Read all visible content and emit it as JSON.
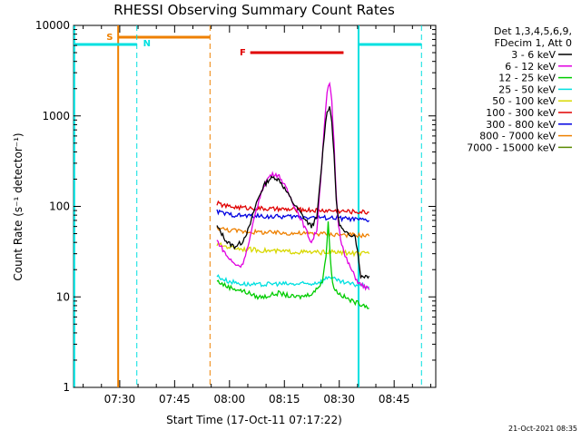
{
  "chart_data": {
    "type": "line",
    "title": "RHESSI Observing Summary Count Rates",
    "xlabel": "Start Time (17-Oct-11 07:17:22)",
    "ylabel": "Count Rate (s⁻¹ detector⁻¹)",
    "xlim_minutes_after_start": [
      0,
      99
    ],
    "ylim": [
      1,
      10000
    ],
    "y_scale": "log",
    "x_ticks": [
      "07:30",
      "07:45",
      "08:00",
      "08:15",
      "08:30",
      "08:45"
    ],
    "x_tick_minutes": [
      12.63,
      27.63,
      42.63,
      57.63,
      72.63,
      87.63
    ],
    "y_ticks": [
      "1",
      "10",
      "100",
      "1000",
      "10000"
    ],
    "y_tick_values": [
      1,
      10,
      100,
      1000,
      10000
    ],
    "legend_header": [
      "Det 1,3,4,5,6,9,",
      "FDecim 1, Att 0"
    ],
    "legend_position": "right",
    "series": [
      {
        "name": "3 - 6 keV",
        "color": "#000000",
        "t": [
          39.2,
          40.5,
          42,
          44,
          46,
          48,
          50,
          52,
          53.5,
          55,
          56.5,
          58,
          60,
          62,
          63.5,
          65,
          66.5,
          67.5,
          68.5,
          69.3,
          70,
          70.6,
          71.2,
          71.8,
          72.4,
          73,
          73.6,
          74.2,
          75,
          77,
          78.5,
          79.5,
          80.8
        ],
        "v": [
          60,
          50,
          40,
          36,
          40,
          58,
          110,
          170,
          200,
          210,
          190,
          150,
          110,
          85,
          70,
          60,
          75,
          200,
          600,
          1150,
          1250,
          900,
          350,
          120,
          70,
          60,
          55,
          50,
          50,
          48,
          17,
          17,
          17
        ]
      },
      {
        "name": "6 - 12 keV",
        "color": "#e000e0",
        "t": [
          39.2,
          40.5,
          42,
          44,
          46,
          48,
          50,
          52,
          53.5,
          55,
          56.5,
          58,
          60,
          62,
          63.5,
          65,
          66.5,
          67.5,
          68.5,
          69.3,
          70,
          70.6,
          71.2,
          71.8,
          72.4,
          73,
          73.6,
          74.2,
          75,
          76.5,
          78,
          79.5,
          80.8
        ],
        "v": [
          42,
          35,
          28,
          23,
          22,
          40,
          95,
          170,
          215,
          230,
          210,
          160,
          110,
          75,
          55,
          40,
          55,
          190,
          700,
          1800,
          2300,
          1400,
          500,
          130,
          65,
          45,
          35,
          28,
          24,
          18,
          14,
          13,
          12
        ]
      },
      {
        "name": "12 - 25 keV",
        "color": "#00cc00",
        "t": [
          39.2,
          42,
          45,
          48,
          50,
          52,
          54,
          56,
          58,
          60,
          62,
          64,
          66,
          68,
          69,
          69.6,
          70.2,
          70.8,
          71.5,
          72.5,
          74,
          76,
          78,
          80,
          80.8
        ],
        "v": [
          15,
          13,
          12,
          11,
          10,
          10,
          10.5,
          11,
          10.5,
          10,
          10,
          10.5,
          11.5,
          15,
          28,
          65,
          28,
          14,
          12,
          11,
          10,
          9,
          8.5,
          8,
          7.5
        ]
      },
      {
        "name": "25 - 50 keV",
        "color": "#00e0e0",
        "t": [
          39.2,
          42,
          46,
          50,
          55,
          60,
          65,
          68,
          70,
          72,
          75,
          78,
          80.8
        ],
        "v": [
          17,
          15,
          14,
          13.5,
          14,
          13.8,
          14,
          15,
          17,
          15,
          14,
          13.5,
          13
        ]
      },
      {
        "name": "50 - 100 keV",
        "color": "#d8d800",
        "t": [
          39.2,
          42,
          46,
          50,
          55,
          60,
          65,
          68,
          70,
          72,
          75,
          78,
          80.8
        ],
        "v": [
          38,
          36,
          34,
          33,
          32,
          31.5,
          31,
          31,
          31.5,
          31,
          30.5,
          30,
          30
        ]
      },
      {
        "name": "100 - 300 keV",
        "color": "#e00000",
        "t": [
          39.2,
          42,
          46,
          50,
          55,
          60,
          65,
          68,
          70,
          72,
          75,
          78,
          80.8
        ],
        "v": [
          108,
          100,
          97,
          95,
          93,
          92,
          91,
          90,
          90,
          89,
          88,
          87,
          86
        ]
      },
      {
        "name": "300 - 800 keV",
        "color": "#0000e0",
        "t": [
          39.2,
          42,
          46,
          50,
          55,
          60,
          65,
          68,
          70,
          72,
          75,
          78,
          80.8
        ],
        "v": [
          88,
          82,
          79,
          78,
          77,
          77,
          76,
          75,
          75,
          74,
          73,
          71,
          70
        ]
      },
      {
        "name": "800 - 7000 keV",
        "color": "#ee8000",
        "t": [
          39.2,
          42,
          46,
          50,
          55,
          60,
          65,
          68,
          70,
          72,
          75,
          78,
          80.8
        ],
        "v": [
          58,
          55,
          53,
          52,
          51,
          50.5,
          50,
          50,
          49.5,
          49,
          48.5,
          48,
          47
        ]
      },
      {
        "name": "7000 - 15000 keV",
        "color": "#5a8a00",
        "t": [],
        "v": []
      }
    ],
    "flags": {
      "saa_label": "S",
      "night_label": "N",
      "flare_label": "F",
      "saa_color": "#ee8000",
      "night_color": "#00e0e0",
      "flare_color": "#e00000"
    }
  },
  "stamp": "21-Oct-2021 08:35"
}
